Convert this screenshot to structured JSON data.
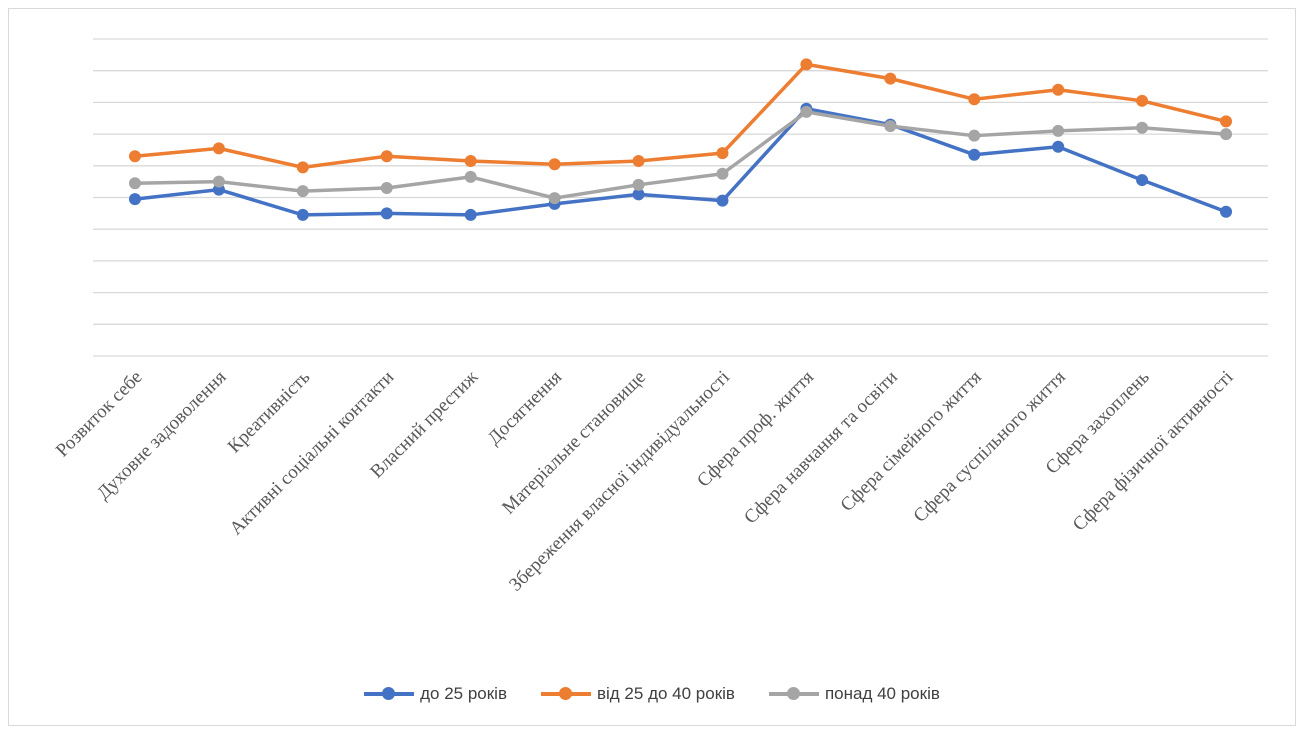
{
  "chart_data": {
    "type": "line",
    "title": "",
    "xlabel": "",
    "ylabel": "",
    "ylim": [
      0,
      10
    ],
    "grid": true,
    "legend_position": "bottom",
    "categories": [
      "Розвиток себе",
      "Духовне задоволення",
      "Креативність",
      "Активні соціальні контакти",
      "Власний престиж",
      "Досягнення",
      "Матеріальне становище",
      "Збереження власної індивідуальності",
      "Сфера проф. життя",
      "Сфера навчання та освіти",
      "Сфера сімейного життя",
      "Сфера суспільного життя",
      "Сфера захоплень",
      "Сфера фізичної активності"
    ],
    "series": [
      {
        "name": "до 25 років",
        "color": "#4472c4",
        "values": [
          4.95,
          5.25,
          4.45,
          4.5,
          4.45,
          4.8,
          5.1,
          4.9,
          7.8,
          7.3,
          6.35,
          6.6,
          5.55,
          4.55
        ]
      },
      {
        "name": "від 25 до 40 років",
        "color": "#ed7d31",
        "values": [
          6.3,
          6.55,
          5.95,
          6.3,
          6.15,
          6.05,
          6.15,
          6.4,
          9.2,
          8.75,
          8.1,
          8.4,
          8.05,
          7.4
        ]
      },
      {
        "name": "понад 40 років",
        "color": "#a5a5a5",
        "values": [
          5.45,
          5.5,
          5.2,
          5.3,
          5.65,
          4.98,
          5.4,
          5.75,
          7.7,
          7.25,
          6.95,
          7.1,
          7.2,
          7.0
        ]
      }
    ]
  }
}
